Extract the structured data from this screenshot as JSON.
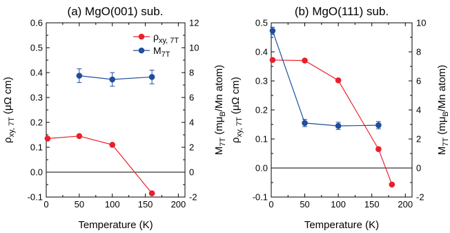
{
  "chart_data": [
    {
      "type": "line",
      "title": "(a) MgO(001) sub.",
      "xlabel": "Temperature (K)",
      "ylabel_left": {
        "base": "ρ",
        "sub": "xy, 7T",
        "unit": " (μΩ cm)"
      },
      "ylabel_right": {
        "base": "M",
        "sub": "7T",
        "rest": " (mμ",
        "sub2": "B",
        "tail": "/Mn atom)"
      },
      "xlim": [
        0,
        210
      ],
      "xticks": [
        "0",
        "50",
        "100",
        "150",
        "200"
      ],
      "ylim_left": [
        -0.1,
        0.6
      ],
      "yticks_left": [
        "-0.1",
        "0.0",
        "0.1",
        "0.2",
        "0.3",
        "0.4",
        "0.5",
        "0.6"
      ],
      "ylim_right": [
        -2,
        12
      ],
      "yticks_right": [
        "-2",
        "0",
        "2",
        "4",
        "6",
        "8",
        "10",
        "12"
      ],
      "zero_line": true,
      "legend": {
        "placement": "top-right",
        "entries": [
          {
            "base": "ρ",
            "sub": "xy, 7T",
            "color": "#e8202a"
          },
          {
            "base": "M",
            "sub": "7T",
            "color": "#1f4e9c"
          }
        ]
      },
      "series": [
        {
          "axis": "left",
          "color": "#e8202a",
          "x": [
            2,
            50,
            100,
            160
          ],
          "y": [
            0.135,
            0.145,
            0.11,
            -0.085
          ],
          "yerr": null
        },
        {
          "axis": "right",
          "color": "#1f4e9c",
          "x": [
            50,
            100,
            160
          ],
          "y": [
            7.75,
            7.45,
            7.65
          ],
          "yerr": [
            0.55,
            0.55,
            0.55
          ]
        }
      ]
    },
    {
      "type": "line",
      "title": "(b) MgO(111) sub.",
      "xlabel": "Temperature (K)",
      "ylabel_left": {
        "base": "ρ",
        "sub": "xy, 7T",
        "unit": " (μΩ cm)"
      },
      "ylabel_right": {
        "base": "M",
        "sub": "7T",
        "rest": " (mμ",
        "sub2": "B",
        "tail": "/Mn atom)"
      },
      "xlim": [
        0,
        210
      ],
      "xticks": [
        "0",
        "50",
        "100",
        "150",
        "200"
      ],
      "ylim_left": [
        -0.1,
        0.5
      ],
      "yticks_left": [
        "-0.1",
        "0.0",
        "0.1",
        "0.2",
        "0.3",
        "0.4",
        "0.5"
      ],
      "ylim_right": [
        -2,
        10
      ],
      "yticks_right": [
        "-2",
        "0",
        "2",
        "4",
        "6",
        "8",
        "10"
      ],
      "zero_line": true,
      "legend": null,
      "series": [
        {
          "axis": "left",
          "color": "#e8202a",
          "x": [
            2,
            50,
            100,
            160,
            180
          ],
          "y": [
            0.372,
            0.37,
            0.302,
            0.065,
            -0.057
          ],
          "yerr": null
        },
        {
          "axis": "right",
          "color": "#1f4e9c",
          "x": [
            2,
            50,
            100,
            160
          ],
          "y": [
            9.45,
            3.1,
            2.9,
            2.95
          ],
          "yerr": [
            0.25,
            0.25,
            0.25,
            0.25
          ]
        }
      ]
    }
  ]
}
